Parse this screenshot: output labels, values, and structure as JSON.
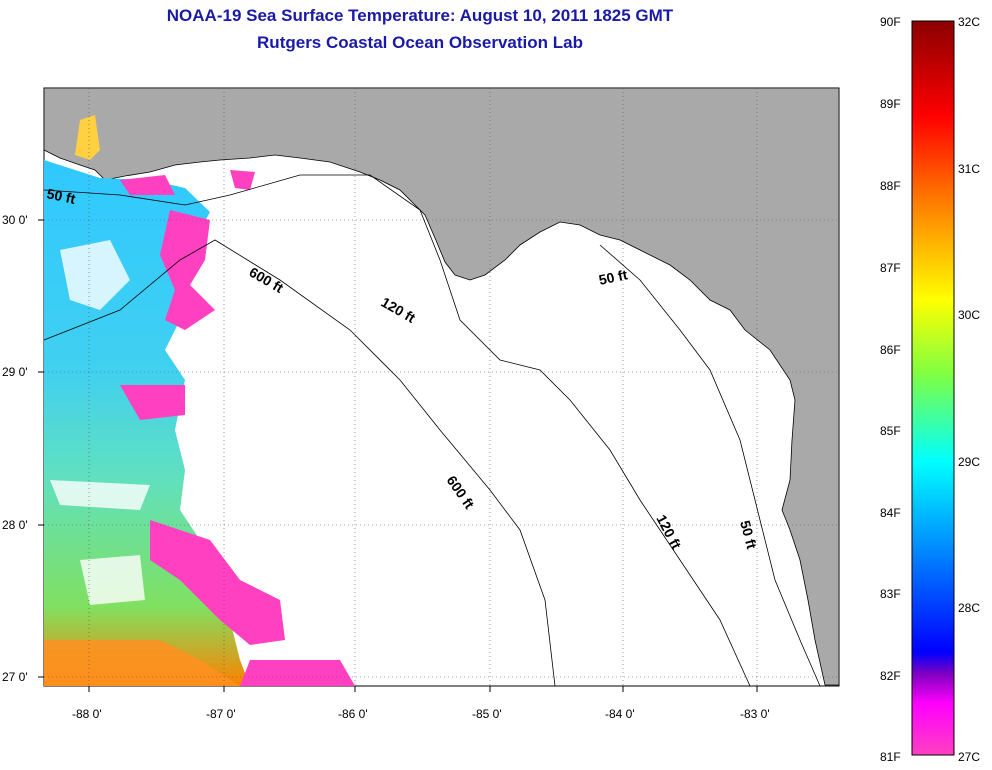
{
  "header": {
    "title": "NOAA-19 Sea Surface Temperature:  August 10, 2011 1825 GMT",
    "subtitle": "Rutgers Coastal Ocean Observation Lab"
  },
  "map": {
    "region": "Eastern Gulf of Mexico / West Florida Shelf",
    "lon_range": [
      -88.33,
      -82.45
    ],
    "lat_range": [
      26.95,
      30.85
    ],
    "x_ticks": [
      {
        "value": -88,
        "label": "-88 0'"
      },
      {
        "value": -87,
        "label": "-87 0'"
      },
      {
        "value": -86,
        "label": "-86 0'"
      },
      {
        "value": -85,
        "label": "-85 0'"
      },
      {
        "value": -84,
        "label": "-84 0'"
      },
      {
        "value": -83,
        "label": "-83 0'"
      }
    ],
    "y_ticks": [
      {
        "value": 30,
        "label": "30 0'"
      },
      {
        "value": 29,
        "label": "29 0'"
      },
      {
        "value": 28,
        "label": "28 0'"
      },
      {
        "value": 27,
        "label": "27 0'"
      }
    ],
    "grid": "dotted",
    "land_color": "#a9a9a9",
    "contour_labels": [
      "50 ft",
      "600 ft",
      "120 ft",
      "50 ft",
      "600 ft",
      "120 ft",
      "50 ft"
    ]
  },
  "colorbar": {
    "f_labels": [
      "90F",
      "89F",
      "88F",
      "87F",
      "86F",
      "85F",
      "84F",
      "83F",
      "82F",
      "81F"
    ],
    "c_labels": [
      "32C",
      "31C",
      "30C",
      "29C",
      "28C",
      "27C"
    ],
    "colors": [
      "#8b0000",
      "#ff0000",
      "#ff8000",
      "#ffff00",
      "#80ff40",
      "#00ffff",
      "#0080ff",
      "#0000ff",
      "#8000c0",
      "#ff00ff",
      "#ff40c0"
    ]
  }
}
